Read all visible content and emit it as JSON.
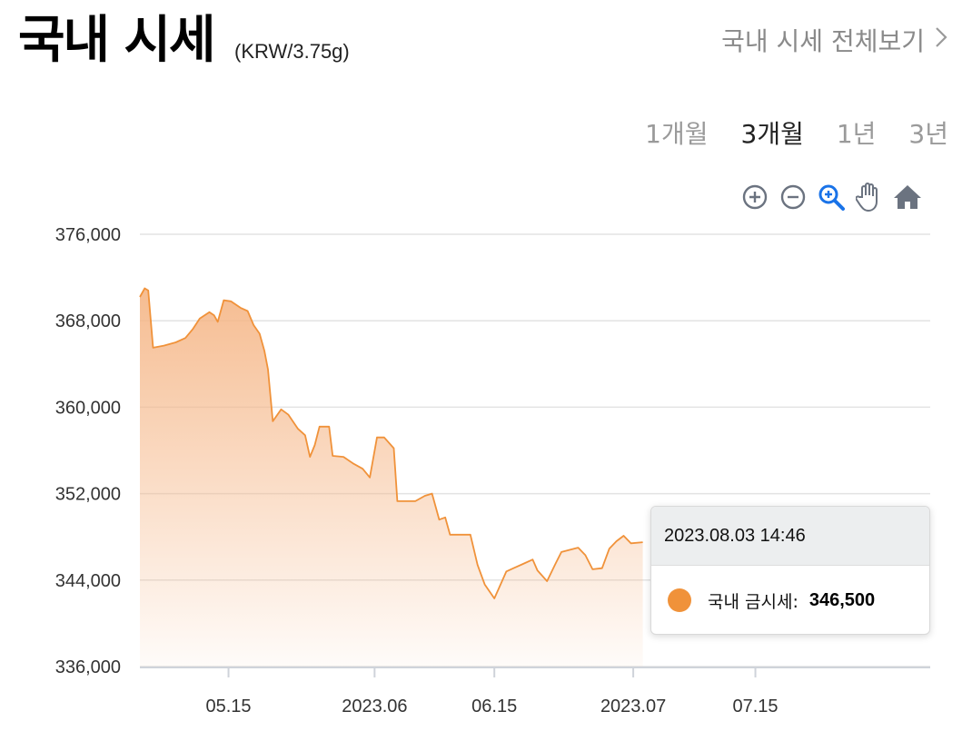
{
  "header": {
    "title": "국내 시세",
    "unit": "(KRW/3.75g)",
    "view_all": "국내 시세 전체보기",
    "view_all_icon": "chevron-right-icon"
  },
  "periods": [
    {
      "label": "1개월",
      "active": false
    },
    {
      "label": "3개월",
      "active": true
    },
    {
      "label": "1년",
      "active": false
    },
    {
      "label": "3년",
      "active": false
    }
  ],
  "toolbar": [
    {
      "name": "zoom-in-icon"
    },
    {
      "name": "zoom-out-icon"
    },
    {
      "name": "selection-zoom-icon"
    },
    {
      "name": "pan-hand-icon"
    },
    {
      "name": "reset-home-icon"
    }
  ],
  "colors": {
    "series": "#f0923a",
    "fill": "#f5b585",
    "grid": "#e3e3e3",
    "toolbar_icon": "#6b7380",
    "toolbar_active": "#1a73e8"
  },
  "tooltip": {
    "date": "2023.08.03 14:46",
    "label": "국내 금시세:",
    "value": "346,500"
  },
  "chart_data": {
    "type": "area",
    "ylim": [
      336000,
      376000
    ],
    "yticks": [
      {
        "value": 376000,
        "label": "376,000"
      },
      {
        "value": 368000,
        "label": "368,000"
      },
      {
        "value": 360000,
        "label": "360,000"
      },
      {
        "value": 352000,
        "label": "352,000"
      },
      {
        "value": 344000,
        "label": "344,000"
      },
      {
        "value": 336000,
        "label": "336,000"
      }
    ],
    "xlim": [
      0,
      33
    ],
    "xticks": [
      {
        "value": 3.7,
        "label": "05.15"
      },
      {
        "value": 9.8,
        "label": "2023.06"
      },
      {
        "value": 14.8,
        "label": "06.15"
      },
      {
        "value": 20.6,
        "label": "2023.07"
      },
      {
        "value": 25.7,
        "label": "07.15"
      }
    ],
    "grid": true,
    "series": [
      {
        "points": [
          [
            0.0,
            370200
          ],
          [
            0.2,
            371000
          ],
          [
            0.35,
            370800
          ],
          [
            0.55,
            365500
          ],
          [
            1.0,
            365700
          ],
          [
            1.5,
            366000
          ],
          [
            1.9,
            366400
          ],
          [
            2.2,
            367200
          ],
          [
            2.5,
            368200
          ],
          [
            2.9,
            368800
          ],
          [
            3.1,
            368500
          ],
          [
            3.25,
            367900
          ],
          [
            3.5,
            369900
          ],
          [
            3.8,
            369800
          ],
          [
            4.2,
            369200
          ],
          [
            4.5,
            368900
          ],
          [
            4.75,
            367600
          ],
          [
            5.0,
            366800
          ],
          [
            5.2,
            365200
          ],
          [
            5.35,
            363500
          ],
          [
            5.55,
            358700
          ],
          [
            5.9,
            359800
          ],
          [
            6.2,
            359300
          ],
          [
            6.6,
            358000
          ],
          [
            6.9,
            357400
          ],
          [
            7.1,
            355400
          ],
          [
            7.3,
            356500
          ],
          [
            7.5,
            358200
          ],
          [
            7.9,
            358200
          ],
          [
            8.05,
            355500
          ],
          [
            8.5,
            355400
          ],
          [
            8.9,
            354800
          ],
          [
            9.3,
            354300
          ],
          [
            9.6,
            353500
          ],
          [
            9.9,
            357200
          ],
          [
            10.2,
            357200
          ],
          [
            10.6,
            356200
          ],
          [
            10.75,
            351300
          ],
          [
            11.5,
            351300
          ],
          [
            11.9,
            351800
          ],
          [
            12.2,
            352000
          ],
          [
            12.5,
            349600
          ],
          [
            12.75,
            349800
          ],
          [
            12.95,
            348200
          ],
          [
            13.8,
            348200
          ],
          [
            14.1,
            345400
          ],
          [
            14.4,
            343600
          ],
          [
            14.8,
            342300
          ],
          [
            15.3,
            344800
          ],
          [
            15.6,
            345100
          ],
          [
            16.0,
            345500
          ],
          [
            16.4,
            345900
          ],
          [
            16.6,
            344900
          ],
          [
            17.0,
            343900
          ],
          [
            17.35,
            345500
          ],
          [
            17.6,
            346600
          ],
          [
            18.3,
            347000
          ],
          [
            18.6,
            346300
          ],
          [
            18.9,
            345000
          ],
          [
            19.3,
            345100
          ],
          [
            19.6,
            346900
          ],
          [
            19.9,
            347600
          ],
          [
            20.2,
            348100
          ],
          [
            20.5,
            347400
          ],
          [
            21.0,
            347500
          ]
        ]
      }
    ]
  }
}
